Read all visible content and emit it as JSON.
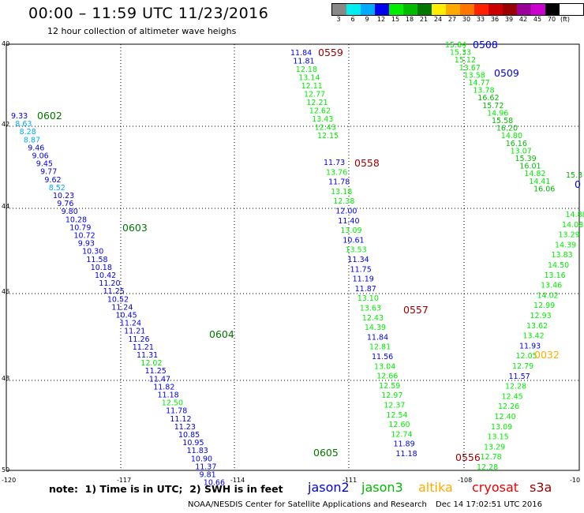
{
  "header": {
    "title": "00:00 – 11:59 UTC 11/23/2016",
    "subtitle": "12 hour collection of altimeter wave heighs"
  },
  "color_scale": {
    "labels": [
      "3",
      "6",
      "9",
      "12",
      "15",
      "18",
      "21",
      "24",
      "27",
      "30",
      "33",
      "36",
      "39",
      "42",
      "45",
      "70"
    ],
    "unit": "(ft)",
    "colors": [
      "#888888",
      "#00eeee",
      "#00aaff",
      "#0000ee",
      "#00ee00",
      "#00bb00",
      "#007700",
      "#ffee00",
      "#ffaa00",
      "#ff7700",
      "#ff2200",
      "#cc0000",
      "#990000",
      "#990099",
      "#cc00cc",
      "#000000"
    ]
  },
  "axes": {
    "lat_labels": [
      "40",
      "42",
      "44",
      "46",
      "48",
      "50"
    ],
    "lon_labels": [
      "-120",
      "-117",
      "-114",
      "-111",
      "-108",
      "-10"
    ]
  },
  "time_labels": [
    {
      "text": "0559",
      "color": "#990000"
    },
    {
      "text": "0558",
      "color": "#990000"
    },
    {
      "text": "0557",
      "color": "#990000"
    },
    {
      "text": "0556",
      "color": "#990000"
    },
    {
      "text": "0602",
      "color": "#007700"
    },
    {
      "text": "0603",
      "color": "#007700"
    },
    {
      "text": "0604",
      "color": "#007700"
    },
    {
      "text": "0605",
      "color": "#007700"
    },
    {
      "text": "0508",
      "color": "#0000ee"
    },
    {
      "text": "0509",
      "color": "#0000ee"
    },
    {
      "text": "0032",
      "color": "#ffaa00"
    },
    {
      "text": "0",
      "color": "#0000ee"
    }
  ],
  "tracks": [
    {
      "name": "jason3-west",
      "values": [
        {
          "v": "9.33",
          "c": "#0000ee"
        },
        {
          "v": "8.63",
          "c": "#00aaff"
        },
        {
          "v": "8.28",
          "c": "#00aaff"
        },
        {
          "v": "8.87",
          "c": "#00aaff"
        },
        {
          "v": "9.46",
          "c": "#0000ee"
        },
        {
          "v": "9.06",
          "c": "#0000ee"
        },
        {
          "v": "9.45",
          "c": "#0000ee"
        },
        {
          "v": "9.77",
          "c": "#0000ee"
        },
        {
          "v": "9.62",
          "c": "#0000ee"
        },
        {
          "v": "8.52",
          "c": "#00aaff"
        },
        {
          "v": "10.23",
          "c": "#0000ee"
        },
        {
          "v": "9.76",
          "c": "#0000ee"
        },
        {
          "v": "9.80",
          "c": "#0000ee"
        },
        {
          "v": "10.28",
          "c": "#0000ee"
        },
        {
          "v": "10.79",
          "c": "#0000ee"
        },
        {
          "v": "10.72",
          "c": "#0000ee"
        },
        {
          "v": "9.93",
          "c": "#0000ee"
        },
        {
          "v": "10.30",
          "c": "#0000ee"
        },
        {
          "v": "11.58",
          "c": "#0000ee"
        },
        {
          "v": "10.18",
          "c": "#0000ee"
        },
        {
          "v": "10.42",
          "c": "#0000ee"
        },
        {
          "v": "11.20",
          "c": "#0000ee"
        },
        {
          "v": "11.25",
          "c": "#0000ee"
        },
        {
          "v": "10.52",
          "c": "#0000ee"
        },
        {
          "v": "11.24",
          "c": "#0000ee"
        },
        {
          "v": "10.45",
          "c": "#0000ee"
        },
        {
          "v": "11.24",
          "c": "#0000ee"
        },
        {
          "v": "11.21",
          "c": "#0000ee"
        },
        {
          "v": "11.26",
          "c": "#0000ee"
        },
        {
          "v": "11.21",
          "c": "#0000ee"
        },
        {
          "v": "11.31",
          "c": "#0000ee"
        },
        {
          "v": "12.02",
          "c": "#00ee00"
        },
        {
          "v": "11.25",
          "c": "#0000ee"
        },
        {
          "v": "11.47",
          "c": "#0000ee"
        },
        {
          "v": "11.82",
          "c": "#0000ee"
        },
        {
          "v": "11.18",
          "c": "#0000ee"
        },
        {
          "v": "12.50",
          "c": "#00ee00"
        },
        {
          "v": "11.78",
          "c": "#0000ee"
        },
        {
          "v": "11.12",
          "c": "#0000ee"
        },
        {
          "v": "11.23",
          "c": "#0000ee"
        },
        {
          "v": "10.85",
          "c": "#0000ee"
        },
        {
          "v": "10.95",
          "c": "#0000ee"
        },
        {
          "v": "11.83",
          "c": "#0000ee"
        },
        {
          "v": "10.90",
          "c": "#0000ee"
        },
        {
          "v": "11.37",
          "c": "#0000ee"
        },
        {
          "v": "9.81",
          "c": "#0000ee"
        },
        {
          "v": "10.66",
          "c": "#0000ee"
        }
      ]
    },
    {
      "name": "cryosat-mid-upper",
      "values": [
        {
          "v": "11.84",
          "c": "#0000ee"
        },
        {
          "v": "11.81",
          "c": "#0000ee"
        },
        {
          "v": "12.18",
          "c": "#00ee00"
        },
        {
          "v": "13.14",
          "c": "#00ee00"
        },
        {
          "v": "12.11",
          "c": "#00ee00"
        },
        {
          "v": "12.77",
          "c": "#00ee00"
        },
        {
          "v": "12.21",
          "c": "#00ee00"
        },
        {
          "v": "12.62",
          "c": "#00ee00"
        },
        {
          "v": "13.43",
          "c": "#00ee00"
        },
        {
          "v": "12.43",
          "c": "#00ee00"
        },
        {
          "v": "12.15",
          "c": "#00ee00"
        }
      ]
    },
    {
      "name": "cryosat-mid-lower",
      "values": [
        {
          "v": "11.73",
          "c": "#0000ee"
        },
        {
          "v": "13.76",
          "c": "#00ee00"
        },
        {
          "v": "11.78",
          "c": "#0000ee"
        },
        {
          "v": "13.18",
          "c": "#00ee00"
        },
        {
          "v": "12.38",
          "c": "#00ee00"
        },
        {
          "v": "12.00",
          "c": "#0000ee"
        },
        {
          "v": "11.40",
          "c": "#0000ee"
        },
        {
          "v": "13.09",
          "c": "#00ee00"
        },
        {
          "v": "10.61",
          "c": "#0000ee"
        },
        {
          "v": "13.53",
          "c": "#00ee00"
        },
        {
          "v": "11.34",
          "c": "#0000ee"
        },
        {
          "v": "11.75",
          "c": "#0000ee"
        },
        {
          "v": "11.19",
          "c": "#0000ee"
        },
        {
          "v": "11.87",
          "c": "#0000ee"
        },
        {
          "v": "13.10",
          "c": "#00ee00"
        },
        {
          "v": "13.63",
          "c": "#00ee00"
        },
        {
          "v": "12.43",
          "c": "#00ee00"
        },
        {
          "v": "14.39",
          "c": "#00ee00"
        },
        {
          "v": "11.84",
          "c": "#0000ee"
        },
        {
          "v": "12.81",
          "c": "#00ee00"
        },
        {
          "v": "11.56",
          "c": "#0000ee"
        },
        {
          "v": "13.04",
          "c": "#00ee00"
        },
        {
          "v": "12.66",
          "c": "#00ee00"
        },
        {
          "v": "12.59",
          "c": "#00ee00"
        },
        {
          "v": "12.97",
          "c": "#00ee00"
        },
        {
          "v": "12.37",
          "c": "#00ee00"
        },
        {
          "v": "12.54",
          "c": "#00ee00"
        },
        {
          "v": "12.60",
          "c": "#00ee00"
        },
        {
          "v": "12.74",
          "c": "#00ee00"
        },
        {
          "v": "11.89",
          "c": "#0000ee"
        },
        {
          "v": "11.18",
          "c": "#0000ee"
        }
      ]
    },
    {
      "name": "jason2-east-descending",
      "values": [
        {
          "v": "15.84",
          "c": "#00ee00"
        },
        {
          "v": "15.33",
          "c": "#00ee00"
        },
        {
          "v": "15.12",
          "c": "#00ee00"
        },
        {
          "v": "13.67",
          "c": "#00ee00"
        },
        {
          "v": "13.58",
          "c": "#00ee00"
        },
        {
          "v": "14.77",
          "c": "#00ee00"
        },
        {
          "v": "13.78",
          "c": "#00ee00"
        },
        {
          "v": "16.62",
          "c": "#00bb00"
        },
        {
          "v": "15.72",
          "c": "#00bb00"
        },
        {
          "v": "14.96",
          "c": "#00ee00"
        },
        {
          "v": "15.58",
          "c": "#00bb00"
        },
        {
          "v": "16.20",
          "c": "#00bb00"
        },
        {
          "v": "14.80",
          "c": "#00ee00"
        },
        {
          "v": "16.16",
          "c": "#00bb00"
        },
        {
          "v": "13.07",
          "c": "#00ee00"
        },
        {
          "v": "15.39",
          "c": "#00bb00"
        },
        {
          "v": "16.01",
          "c": "#00bb00"
        },
        {
          "v": "14.82",
          "c": "#00ee00"
        },
        {
          "v": "14.41",
          "c": "#00ee00"
        },
        {
          "v": "16.06",
          "c": "#00bb00"
        }
      ]
    },
    {
      "name": "altika-east-ascending",
      "values": [
        {
          "v": "12.28",
          "c": "#00ee00"
        },
        {
          "v": "12.78",
          "c": "#00ee00"
        },
        {
          "v": "13.29",
          "c": "#00ee00"
        },
        {
          "v": "13.15",
          "c": "#00ee00"
        },
        {
          "v": "13.09",
          "c": "#00ee00"
        },
        {
          "v": "12.40",
          "c": "#00ee00"
        },
        {
          "v": "12.26",
          "c": "#00ee00"
        },
        {
          "v": "12.45",
          "c": "#00ee00"
        },
        {
          "v": "12.28",
          "c": "#00ee00"
        },
        {
          "v": "11.57",
          "c": "#0000ee"
        },
        {
          "v": "12.79",
          "c": "#00ee00"
        },
        {
          "v": "12.05",
          "c": "#00ee00"
        },
        {
          "v": "11.93",
          "c": "#0000ee"
        },
        {
          "v": "13.42",
          "c": "#00ee00"
        },
        {
          "v": "13.62",
          "c": "#00ee00"
        },
        {
          "v": "12.93",
          "c": "#00ee00"
        },
        {
          "v": "12.99",
          "c": "#00ee00"
        },
        {
          "v": "14.02",
          "c": "#00ee00"
        },
        {
          "v": "13.46",
          "c": "#00ee00"
        },
        {
          "v": "13.16",
          "c": "#00ee00"
        },
        {
          "v": "14.50",
          "c": "#00ee00"
        },
        {
          "v": "13.83",
          "c": "#00ee00"
        },
        {
          "v": "14.39",
          "c": "#00ee00"
        },
        {
          "v": "13.29",
          "c": "#00ee00"
        },
        {
          "v": "14.08",
          "c": "#00ee00"
        },
        {
          "v": "14.88",
          "c": "#00ee00"
        }
      ]
    },
    {
      "name": "edge-partial",
      "values": [
        {
          "v": "15.3",
          "c": "#00bb00"
        }
      ]
    }
  ],
  "footer": {
    "note": "note:  1) Time is in UTC;  2) SWH is in feet",
    "missions": [
      {
        "label": "jason2",
        "color": "#0000ee"
      },
      {
        "label": "jason3",
        "color": "#00bb00"
      },
      {
        "label": "altika",
        "color": "#ffaa00"
      },
      {
        "label": "cryosat",
        "color": "#ee0000"
      },
      {
        "label": "s3a",
        "color": "#990000"
      }
    ],
    "credit": "NOAA/NESDIS Center for Satellite Applications and Research",
    "date": "Dec 14 17:02:51 UTC 2016"
  }
}
